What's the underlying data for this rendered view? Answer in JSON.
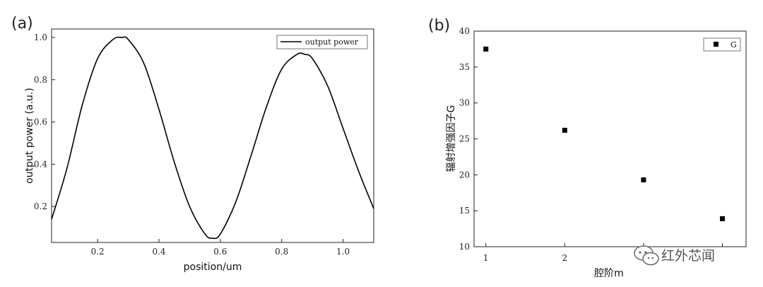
{
  "chart_data": [
    {
      "panel_label": "(a)",
      "type": "line",
      "xlabel": "position/um",
      "ylabel": "output power (a.u.)",
      "xlim": [
        0.05,
        1.1
      ],
      "ylim": [
        0.03,
        1.04
      ],
      "xticks": [
        0.2,
        0.4,
        0.6,
        0.8,
        1.0
      ],
      "xtick_labels": [
        "0.2",
        "0.4",
        "0.6",
        "0.8",
        "1.0"
      ],
      "yticks": [
        0.2,
        0.4,
        0.6,
        0.8,
        1.0
      ],
      "ytick_labels": [
        "0.2",
        "0.4",
        "0.6",
        "0.8",
        "1.0"
      ],
      "legend": {
        "position": "top-right",
        "entries": [
          "output power"
        ]
      },
      "series": [
        {
          "name": "output power",
          "color": "#000000",
          "x": [
            0.05,
            0.1,
            0.15,
            0.2,
            0.25,
            0.28,
            0.3,
            0.35,
            0.4,
            0.45,
            0.5,
            0.55,
            0.575,
            0.6,
            0.65,
            0.7,
            0.75,
            0.8,
            0.85,
            0.875,
            0.9,
            0.95,
            1.0,
            1.05,
            1.1
          ],
          "y": [
            0.14,
            0.38,
            0.68,
            0.9,
            0.99,
            1.0,
            0.99,
            0.88,
            0.66,
            0.41,
            0.2,
            0.07,
            0.05,
            0.07,
            0.22,
            0.44,
            0.67,
            0.85,
            0.92,
            0.92,
            0.9,
            0.77,
            0.57,
            0.37,
            0.19
          ]
        }
      ]
    },
    {
      "panel_label": "(b)",
      "type": "scatter",
      "xlabel": "腔阶m",
      "ylabel": "辐射增强因子G",
      "xlim": [
        0.85,
        4.3
      ],
      "ylim": [
        10,
        40
      ],
      "xticks": [
        1,
        2,
        3,
        4
      ],
      "xtick_labels": [
        "1",
        "2",
        "",
        ""
      ],
      "yticks": [
        10,
        15,
        20,
        25,
        30,
        35,
        40
      ],
      "ytick_labels": [
        "10",
        "15",
        "20",
        "25",
        "30",
        "35",
        "40"
      ],
      "legend": {
        "position": "top-right",
        "entries": [
          "G"
        ]
      },
      "series": [
        {
          "name": "G",
          "color": "#000000",
          "marker": "square",
          "x": [
            1,
            2,
            3,
            4
          ],
          "y": [
            37.5,
            26.2,
            19.3,
            13.9
          ]
        }
      ]
    }
  ],
  "watermark": {
    "text": "红外芯闻",
    "icon": "wechat-icon"
  }
}
